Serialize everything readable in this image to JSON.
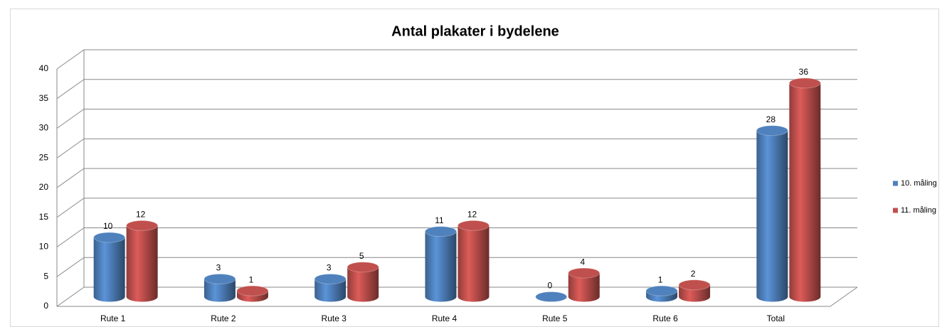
{
  "chart_data": {
    "type": "bar3d",
    "title": "Antal plakater i bydelene",
    "categories": [
      "Rute 1",
      "Rute 2",
      "Rute 3",
      "Rute 4",
      "Rute 5",
      "Rute 6",
      "Total"
    ],
    "series": [
      {
        "name": "10. måling",
        "color": "#4f81bd",
        "values": [
          10,
          3,
          3,
          11,
          0,
          1,
          28
        ]
      },
      {
        "name": "11. måling",
        "color": "#c0504d",
        "values": [
          12,
          1,
          5,
          12,
          4,
          2,
          36
        ]
      }
    ],
    "ylim": [
      0,
      40
    ],
    "yticks": [
      0,
      5,
      10,
      15,
      20,
      25,
      30,
      35,
      40
    ],
    "grid": true,
    "legend": "right"
  }
}
